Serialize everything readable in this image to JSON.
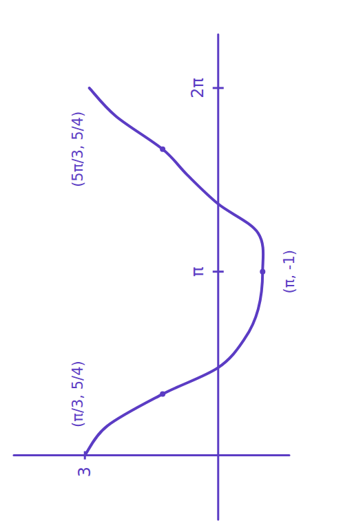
{
  "chart_data": {
    "type": "line",
    "x": [
      0,
      0.5,
      1.0472,
      1.5,
      2.0,
      2.5,
      3.1416,
      3.8,
      4.3,
      4.8,
      5.236,
      5.8,
      6.2832
    ],
    "series": [
      {
        "color": "#5b3cc4",
        "values": [
          3,
          2.5,
          1.25,
          0,
          -0.6,
          -0.9,
          -1,
          -0.9,
          0,
          0.7,
          1.25,
          2.3,
          2.9
        ]
      }
    ],
    "xlim": [
      -1.1,
      7.2
    ],
    "ylim": [
      -1.6,
      4.6
    ],
    "xticks": [
      {
        "value": 3.1416,
        "label": "π"
      },
      {
        "value": 6.2832,
        "label": "2π"
      }
    ],
    "yticks": [
      3
    ],
    "grid": false,
    "annotations": [
      {
        "text": "(π/3, 5/4)",
        "x": 1.0472,
        "y": 1.25
      },
      {
        "text": "(π, -1)",
        "x": 3.1416,
        "y": -1
      },
      {
        "text": "(5π/3, 5/4)",
        "x": 5.236,
        "y": 1.25
      }
    ]
  }
}
